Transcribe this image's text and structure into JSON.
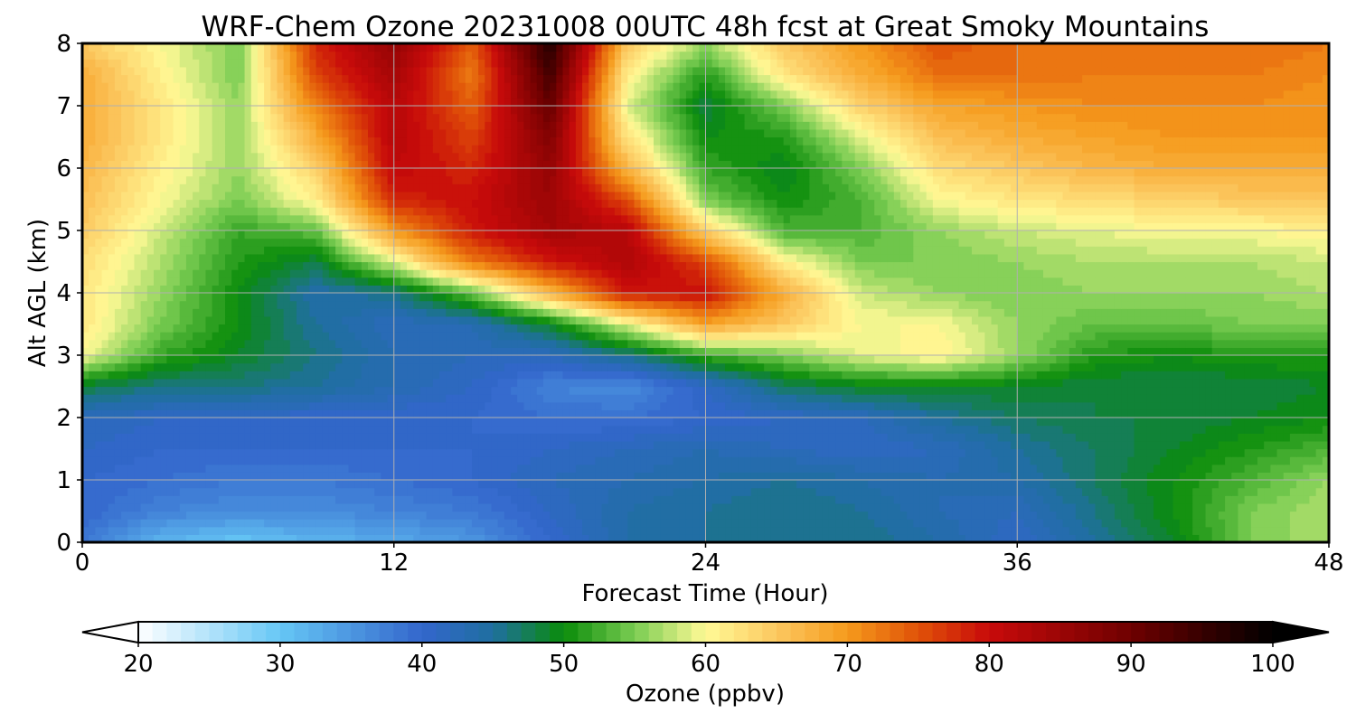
{
  "chart_data": {
    "type": "heatmap",
    "title": "WRF-Chem Ozone  20231008 00UTC 48h fcst at Great Smoky Mountains",
    "xlabel": "Forecast Time (Hour)",
    "ylabel": "Alt AGL (km)",
    "xlim": [
      0,
      48
    ],
    "ylim": [
      0,
      8
    ],
    "x_ticks": [
      "0",
      "12",
      "24",
      "36",
      "48"
    ],
    "y_ticks": [
      "0",
      "1",
      "2",
      "3",
      "4",
      "5",
      "6",
      "7",
      "8"
    ],
    "grid": true,
    "x": [
      0,
      3,
      6,
      9,
      12,
      15,
      18,
      21,
      24,
      27,
      30,
      33,
      36,
      39,
      42,
      45,
      48
    ],
    "y": [
      0,
      0.5,
      1,
      1.5,
      2,
      2.5,
      3,
      3.5,
      4,
      4.5,
      5,
      5.5,
      6,
      6.5,
      7,
      7.5,
      8
    ],
    "z": [
      [
        38,
        32,
        30,
        32,
        33,
        35,
        40,
        44,
        45,
        46,
        46,
        44,
        41,
        45,
        49,
        55,
        57
      ],
      [
        40,
        37,
        36,
        36,
        37,
        38,
        41,
        44,
        45,
        46,
        45,
        43,
        42,
        46,
        50,
        55,
        57
      ],
      [
        40,
        39,
        38,
        38,
        39,
        40,
        42,
        43,
        44,
        45,
        44,
        43,
        44,
        47,
        50,
        53,
        56
      ],
      [
        41,
        40,
        40,
        40,
        40,
        40,
        41,
        42,
        43,
        42,
        41,
        42,
        45,
        47,
        49,
        51,
        53
      ],
      [
        42,
        41,
        41,
        40,
        40,
        40,
        39,
        39,
        40,
        41,
        42,
        45,
        47,
        48,
        48,
        49,
        50
      ],
      [
        48,
        46,
        46,
        45,
        43,
        41,
        37,
        36,
        41,
        47,
        49,
        49,
        49,
        48,
        48,
        48,
        49
      ],
      [
        60,
        52,
        49,
        46,
        43,
        42,
        42,
        46,
        52,
        55,
        59,
        61,
        56,
        51,
        50,
        51,
        51
      ],
      [
        62,
        55,
        50,
        45,
        42,
        43,
        49,
        59,
        69,
        65,
        60,
        60,
        56,
        54,
        54,
        55,
        55
      ],
      [
        62,
        56,
        50,
        44,
        46,
        54,
        67,
        79,
        80,
        68,
        58,
        56,
        55,
        56,
        56,
        56,
        57
      ],
      [
        63,
        57,
        51,
        48,
        59,
        72,
        79,
        83,
        76,
        61,
        55,
        55,
        56,
        57,
        57,
        57,
        58
      ],
      [
        65,
        58,
        52,
        54,
        70,
        79,
        84,
        82,
        64,
        53,
        53,
        56,
        58,
        59,
        60,
        60,
        61
      ],
      [
        66,
        60,
        55,
        61,
        78,
        80,
        85,
        75,
        55,
        50,
        53,
        60,
        62,
        63,
        64,
        65,
        65
      ],
      [
        67,
        61,
        56,
        64,
        81,
        78,
        86,
        67,
        52,
        49,
        55,
        63,
        65,
        67,
        68,
        68,
        68
      ],
      [
        68,
        62,
        56,
        68,
        82,
        76,
        88,
        62,
        50,
        51,
        59,
        66,
        68,
        69,
        70,
        70,
        70
      ],
      [
        68,
        62,
        56,
        72,
        82,
        74,
        91,
        59,
        48,
        55,
        64,
        69,
        70,
        71,
        71,
        71,
        70
      ],
      [
        68,
        61,
        55,
        76,
        84,
        72,
        94,
        61,
        51,
        62,
        68,
        73,
        73,
        72,
        72,
        72,
        71
      ],
      [
        65,
        60,
        55,
        78,
        86,
        74,
        97,
        65,
        56,
        65,
        70,
        75,
        73,
        73,
        73,
        73,
        72
      ]
    ],
    "colorbar": {
      "label": "Ozone  (ppbv)",
      "min": 20,
      "max": 100,
      "step": 1,
      "ticks": [
        "20",
        "30",
        "40",
        "50",
        "60",
        "70",
        "80",
        "90",
        "100"
      ],
      "extend": "both",
      "stops": [
        {
          "value": 20,
          "color": "#ffffff"
        },
        {
          "value": 30,
          "color": "#66c7f5"
        },
        {
          "value": 40,
          "color": "#3366cc"
        },
        {
          "value": 45,
          "color": "#1f6fa0"
        },
        {
          "value": 50,
          "color": "#0a8c0a"
        },
        {
          "value": 55,
          "color": "#7acc52"
        },
        {
          "value": 60,
          "color": "#fffa96"
        },
        {
          "value": 65,
          "color": "#fcc860"
        },
        {
          "value": 70,
          "color": "#f59a1c"
        },
        {
          "value": 75,
          "color": "#e05208"
        },
        {
          "value": 80,
          "color": "#c80a0a"
        },
        {
          "value": 90,
          "color": "#6e0000"
        },
        {
          "value": 100,
          "color": "#000000"
        }
      ]
    }
  }
}
